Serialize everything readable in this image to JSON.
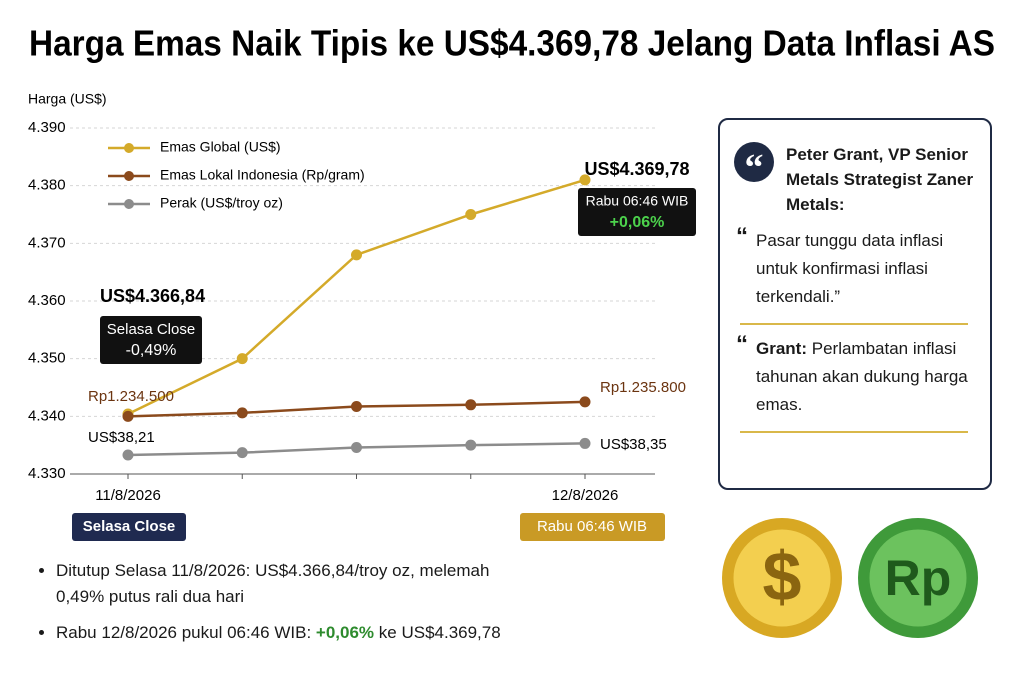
{
  "title": "Harga Emas Naik Tipis ke US$4.369,78 Jelang Data Inflasi AS",
  "chart_data": {
    "type": "line",
    "y_label": "Harga (US$)",
    "categories": [
      "11/8/2026",
      null,
      null,
      null,
      "12/8/2026"
    ],
    "series": [
      {
        "name": "Emas Global (US$)",
        "color": "#d4aa2a",
        "values": [
          4340.4,
          4350,
          4368,
          4375,
          4381
        ]
      },
      {
        "name": "Emas Lokal Indonesia (Rp/gram)",
        "color": "#8b4a1c",
        "values": [
          4340,
          4340.6,
          4341.7,
          4342,
          4342.5
        ]
      },
      {
        "name": "Perak (US$/troy oz)",
        "color": "#8c8c8c",
        "values": [
          4333.3,
          4333.7,
          4334.6,
          4335,
          4335.3
        ]
      }
    ],
    "ylim": [
      4330,
      4390
    ],
    "yticks": [
      {
        "value": 4330,
        "label": "4.330"
      },
      {
        "value": 4340,
        "label": "4.340"
      },
      {
        "value": 4350,
        "label": "4.350"
      },
      {
        "value": 4360,
        "label": "4.360"
      },
      {
        "value": 4370,
        "label": "4.370"
      },
      {
        "value": 4380,
        "label": "4.380"
      },
      {
        "value": 4390,
        "label": "4.390"
      }
    ],
    "grid": true,
    "annotations": [
      "US$4.366,84",
      "Selasa Close",
      "-0,49%",
      "US$4.369,78",
      "Rabu 06:46 WIB",
      "+0,06%",
      "Rp1.234.500",
      "Rp1.235.800",
      "US$38,21",
      "US$38,35"
    ],
    "x_badges": [
      "Selasa Close",
      "Rabu 06:46 WIB"
    ]
  },
  "quote": {
    "mark": "“",
    "author": "Peter Grant, VP Senior Metals Strategist Zaner Metals:",
    "text": "Pasar tunggu data inflasi untuk konfirmasi inflasi terkendali.”",
    "note_label": "Grant:",
    "note": "Perlambatan inflasi tahunan akan dukung harga emas."
  },
  "coins": [
    "$",
    "Rp"
  ],
  "notes": [
    {
      "parts": [
        "Ditutup Selasa 11/8/2026: US$4.366,84/troy oz, melemah 0,49% putus rali dua hari"
      ]
    },
    {
      "parts": [
        "Rabu 12/8/2026 pukul 06:46 WIB: ",
        "+0,06%",
        " ke US$4.369,78"
      ]
    }
  ]
}
